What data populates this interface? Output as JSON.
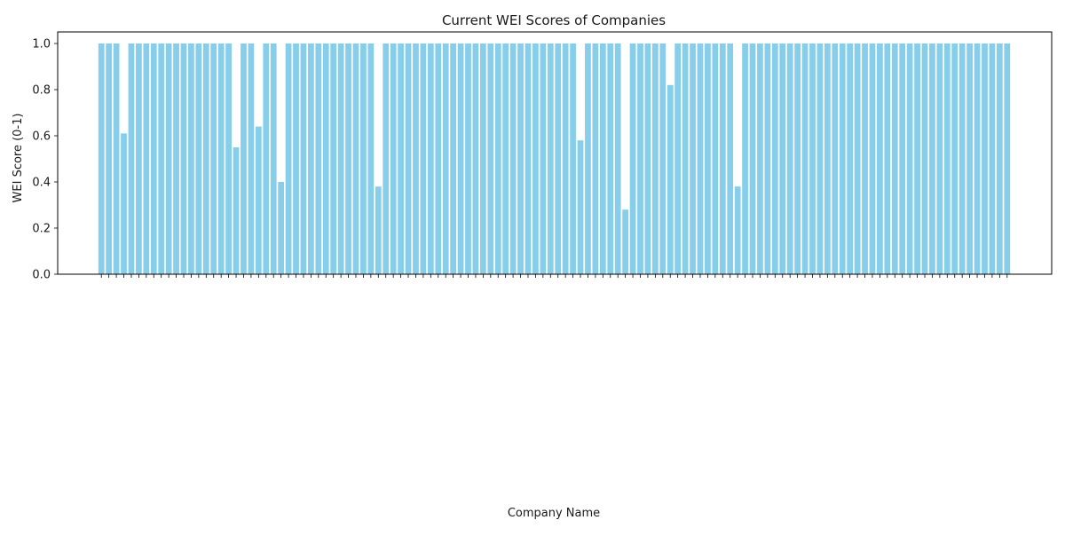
{
  "chart_data": {
    "type": "bar",
    "title": "Current WEI Scores of Companies",
    "xlabel": "Company Name",
    "ylabel": "WEI Score (0-1)",
    "ylim": [
      0,
      1.05
    ],
    "yticks": [
      "0.0",
      "0.2",
      "0.4",
      "0.6",
      "0.8",
      "1.0"
    ],
    "bar_color": "#87ceeb",
    "grid": false,
    "values": [
      1.0,
      1.0,
      1.0,
      0.61,
      1.0,
      1.0,
      1.0,
      1.0,
      1.0,
      1.0,
      1.0,
      1.0,
      1.0,
      1.0,
      1.0,
      1.0,
      1.0,
      1.0,
      0.55,
      1.0,
      1.0,
      0.64,
      1.0,
      1.0,
      0.4,
      1.0,
      1.0,
      1.0,
      1.0,
      1.0,
      1.0,
      1.0,
      1.0,
      1.0,
      1.0,
      1.0,
      1.0,
      0.38,
      1.0,
      1.0,
      1.0,
      1.0,
      1.0,
      1.0,
      1.0,
      1.0,
      1.0,
      1.0,
      1.0,
      1.0,
      1.0,
      1.0,
      1.0,
      1.0,
      1.0,
      1.0,
      1.0,
      1.0,
      1.0,
      1.0,
      1.0,
      1.0,
      1.0,
      1.0,
      0.58,
      1.0,
      1.0,
      1.0,
      1.0,
      1.0,
      0.28,
      1.0,
      1.0,
      1.0,
      1.0,
      1.0,
      0.82,
      1.0,
      1.0,
      1.0,
      1.0,
      1.0,
      1.0,
      1.0,
      1.0,
      0.38,
      1.0,
      1.0,
      1.0,
      1.0,
      1.0,
      1.0,
      1.0,
      1.0,
      1.0,
      1.0,
      1.0,
      1.0,
      1.0,
      1.0,
      1.0,
      1.0,
      1.0,
      1.0,
      1.0,
      1.0,
      1.0,
      1.0,
      1.0,
      1.0,
      1.0,
      1.0,
      1.0,
      1.0,
      1.0,
      1.0,
      1.0,
      1.0,
      1.0,
      1.0,
      1.0,
      1.0
    ]
  }
}
